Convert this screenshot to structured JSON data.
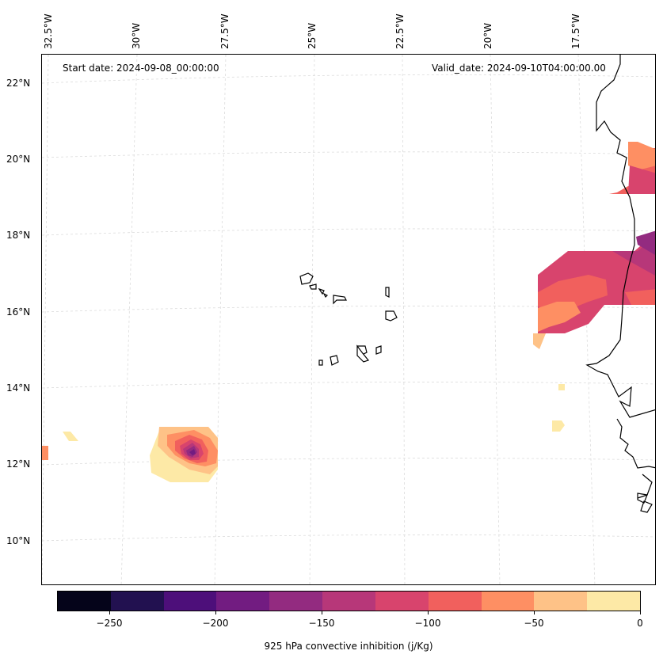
{
  "annotations": {
    "start_date": "Start date: 2024-09-08_00:00:00",
    "valid_date": "Valid_date: 2024-09-10T04:00:00.00"
  },
  "lon_labels": [
    "32.5°W",
    "30°W",
    "27.5°W",
    "25°W",
    "22.5°W",
    "20°W",
    "17.5°W"
  ],
  "lat_labels": [
    "22°N",
    "20°N",
    "18°N",
    "16°N",
    "14°N",
    "12°N",
    "10°N"
  ],
  "map_extent": {
    "lon_min": -32.5,
    "lon_max": -16.3,
    "lat_min": 9.0,
    "lat_max": 22.8
  },
  "colorbar": {
    "label": "925 hPa convective inhibition (j/Kg)",
    "tick_labels": [
      "−250",
      "−200",
      "−150",
      "−100",
      "−50",
      "0"
    ],
    "range": [
      -275,
      0
    ],
    "colors": [
      "#05041a",
      "#221150",
      "#4d0f7a",
      "#721c81",
      "#932b80",
      "#b73779",
      "#d8446d",
      "#f1605d",
      "#fe8f63",
      "#fec287",
      "#fde9a6"
    ]
  },
  "colors": {
    "coastline": "#000000",
    "gridline": "#dcdcdc"
  }
}
